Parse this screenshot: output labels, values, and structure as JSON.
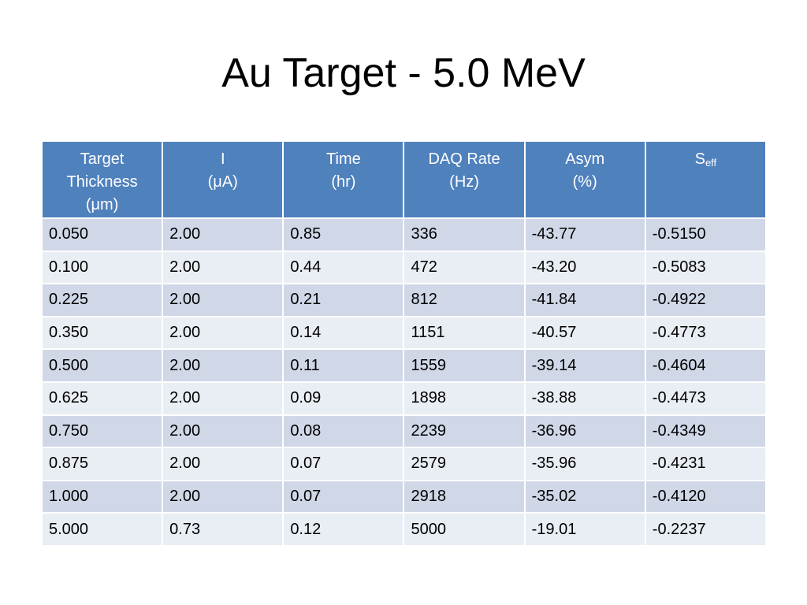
{
  "slide": {
    "title": "Au Target - 5.0 MeV"
  },
  "table": {
    "headers": [
      {
        "lines": [
          "Target",
          "Thickness",
          "(μm)"
        ]
      },
      {
        "lines": [
          "I",
          "(μA)"
        ]
      },
      {
        "lines": [
          "Time",
          "(hr)"
        ]
      },
      {
        "lines": [
          "DAQ Rate",
          "(Hz)"
        ]
      },
      {
        "lines": [
          "Asym",
          "(%)"
        ]
      },
      {
        "base": "S",
        "subscript": "eff"
      }
    ],
    "rows": [
      [
        "0.050",
        "2.00",
        "0.85",
        "336",
        "-43.77",
        "-0.5150"
      ],
      [
        "0.100",
        "2.00",
        "0.44",
        "472",
        "-43.20",
        "-0.5083"
      ],
      [
        "0.225",
        "2.00",
        "0.21",
        "812",
        "-41.84",
        "-0.4922"
      ],
      [
        "0.350",
        "2.00",
        "0.14",
        "1151",
        "-40.57",
        "-0.4773"
      ],
      [
        "0.500",
        "2.00",
        "0.11",
        "1559",
        "-39.14",
        "-0.4604"
      ],
      [
        "0.625",
        "2.00",
        "0.09",
        "1898",
        "-38.88",
        "-0.4473"
      ],
      [
        "0.750",
        "2.00",
        "0.08",
        "2239",
        "-36.96",
        "-0.4349"
      ],
      [
        "0.875",
        "2.00",
        "0.07",
        "2579",
        "-35.96",
        "-0.4231"
      ],
      [
        "1.000",
        "2.00",
        "0.07",
        "2918",
        "-35.02",
        "-0.4120"
      ],
      [
        "5.000",
        "0.73",
        "0.12",
        "5000",
        "-19.01",
        "-0.2237"
      ]
    ]
  },
  "colors": {
    "header_bg": "#4f81bd",
    "row_odd_bg": "#d0d8e8",
    "row_even_bg": "#e9edf4"
  }
}
